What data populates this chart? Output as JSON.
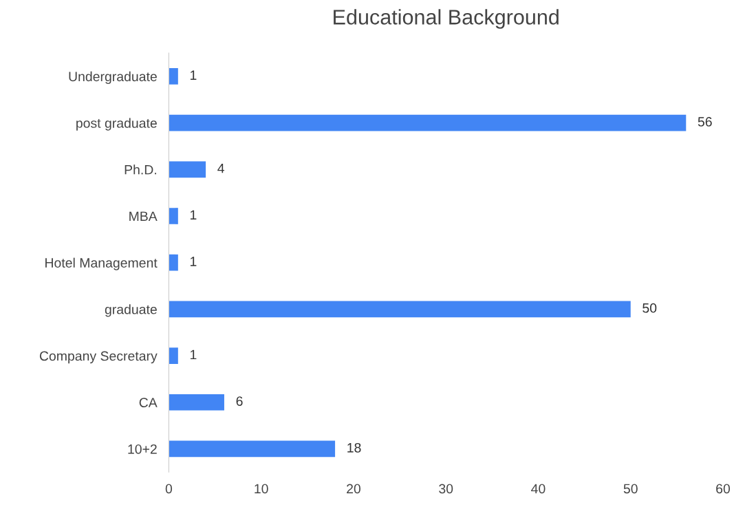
{
  "chart_data": {
    "type": "bar",
    "orientation": "horizontal",
    "title": "Educational Background",
    "categories": [
      "Undergraduate",
      "post graduate",
      "Ph.D.",
      "MBA",
      "Hotel Management",
      "graduate",
      "Company Secretary",
      "CA",
      "10+2"
    ],
    "values": [
      1,
      56,
      4,
      1,
      1,
      50,
      1,
      6,
      18
    ],
    "color": "#4285f4",
    "xlim": [
      0,
      60
    ],
    "xticks": [
      0,
      10,
      20,
      30,
      40,
      50,
      60
    ],
    "grid": false,
    "data_labels": true
  }
}
